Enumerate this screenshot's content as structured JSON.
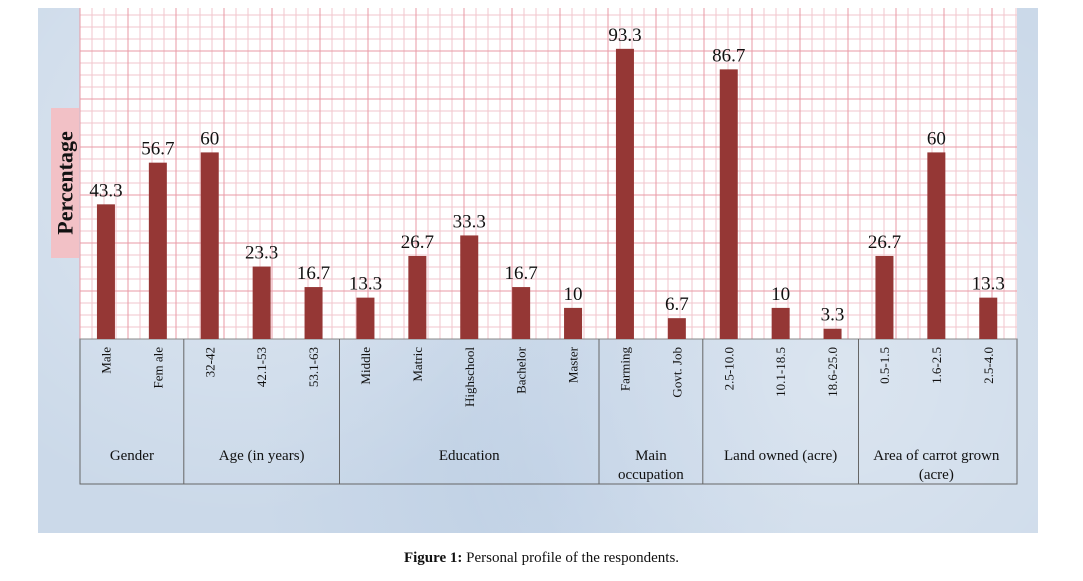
{
  "caption": {
    "label": "Figure 1:",
    "text": "Personal profile of the respondents."
  },
  "chart_data": {
    "type": "bar",
    "title": "",
    "xlabel": "",
    "ylabel": "Percentage",
    "ylim": [
      0,
      100
    ],
    "grid": true,
    "bar_color": "#953735",
    "background_color": "#cbd9e9",
    "groups": [
      {
        "name": "Gender",
        "categories": [
          "Male",
          "Fem ale"
        ],
        "values": [
          43.3,
          56.7
        ],
        "labels": [
          "43.3",
          "56.7"
        ]
      },
      {
        "name": "Age (in years)",
        "categories": [
          "32-42",
          "42.1-53",
          "53.1-63"
        ],
        "values": [
          60,
          23.3,
          16.7
        ],
        "labels": [
          "60",
          "23.3",
          "16.7"
        ]
      },
      {
        "name": "Education",
        "categories": [
          "Middle",
          "Matric",
          "Highschool",
          "Bachelor",
          "Master"
        ],
        "values": [
          13.3,
          26.7,
          33.3,
          16.7,
          10
        ],
        "labels": [
          "13.3",
          "26.7",
          "33.3",
          "16.7",
          "10"
        ]
      },
      {
        "name": "Main occupation",
        "name_lines": [
          "Main",
          "occupation"
        ],
        "categories": [
          "Farming",
          "Govt. Job"
        ],
        "values": [
          93.3,
          6.7
        ],
        "labels": [
          "93.3",
          "6.7"
        ]
      },
      {
        "name": "Land owned (acre)",
        "categories": [
          "2.5-10.0",
          "10.1-18.5",
          "18.6-25.0"
        ],
        "values": [
          86.7,
          10,
          3.3
        ],
        "labels": [
          "86.7",
          "10",
          "3.3"
        ]
      },
      {
        "name": "Area of carrot grown (acre)",
        "name_lines": [
          "Area of carrot grown",
          "(acre)"
        ],
        "categories": [
          "0.5-1.5",
          "1.6-2.5",
          "2.5-4.0"
        ],
        "values": [
          26.7,
          60,
          13.3
        ],
        "labels": [
          "26.7",
          "60",
          "13.3"
        ]
      }
    ]
  }
}
